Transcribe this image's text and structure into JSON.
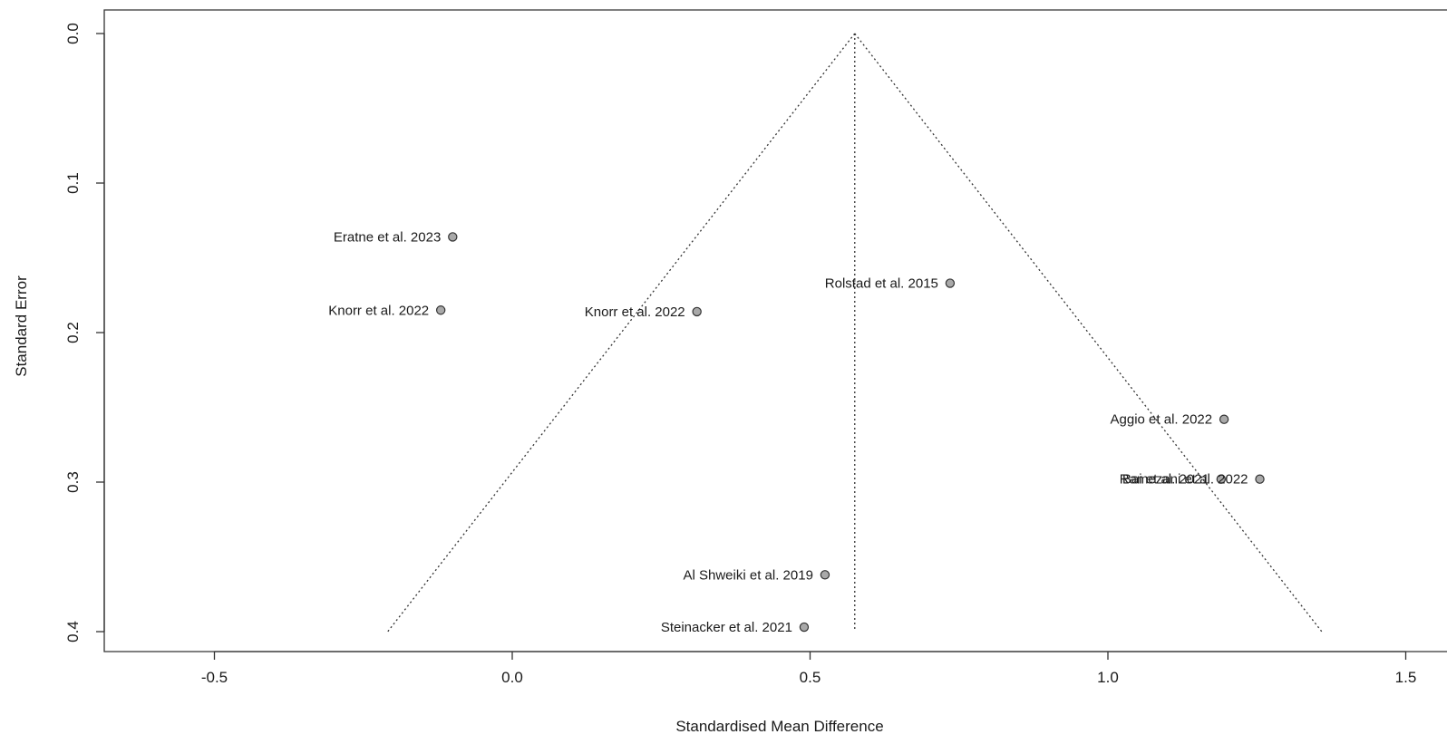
{
  "chart_data": {
    "type": "scatter",
    "subtype": "funnel",
    "xlabel": "Standardised Mean Difference",
    "ylabel": "Standard Error",
    "xlim": [
      -0.68,
      1.58
    ],
    "ylim": [
      0.0,
      0.4
    ],
    "y_reversed": true,
    "x_ticks": [
      -0.5,
      0.0,
      0.5,
      1.0,
      1.5
    ],
    "x_tick_labels": [
      "-0.5",
      "0.0",
      "0.5",
      "1.0",
      "1.5"
    ],
    "y_ticks": [
      0.0,
      0.1,
      0.2,
      0.3,
      0.4
    ],
    "y_tick_labels": [
      "0.0",
      "0.1",
      "0.2",
      "0.3",
      "0.4"
    ],
    "pooled_estimate": 0.575,
    "funnel_se_max": 0.4,
    "point_color": "#a9a9a9",
    "points": [
      {
        "label": "Eratne et al. 2023",
        "x": -0.1,
        "y": 0.136
      },
      {
        "label": "Knorr et al. 2022",
        "x": -0.12,
        "y": 0.185
      },
      {
        "label": "Knorr et al. 2022",
        "x": 0.31,
        "y": 0.186
      },
      {
        "label": "Rolstad et al. 2015",
        "x": 0.735,
        "y": 0.167
      },
      {
        "label": "Aggio et al. 2022",
        "x": 1.195,
        "y": 0.258
      },
      {
        "label": "Bai et al. 2021",
        "x": 1.19,
        "y": 0.298
      },
      {
        "label": "Ramezani et al. 2022",
        "x": 1.255,
        "y": 0.298
      },
      {
        "label": "Al Shweiki et al. 2019",
        "x": 0.525,
        "y": 0.362
      },
      {
        "label": "Steinacker et al. 2021",
        "x": 0.49,
        "y": 0.397
      }
    ]
  }
}
